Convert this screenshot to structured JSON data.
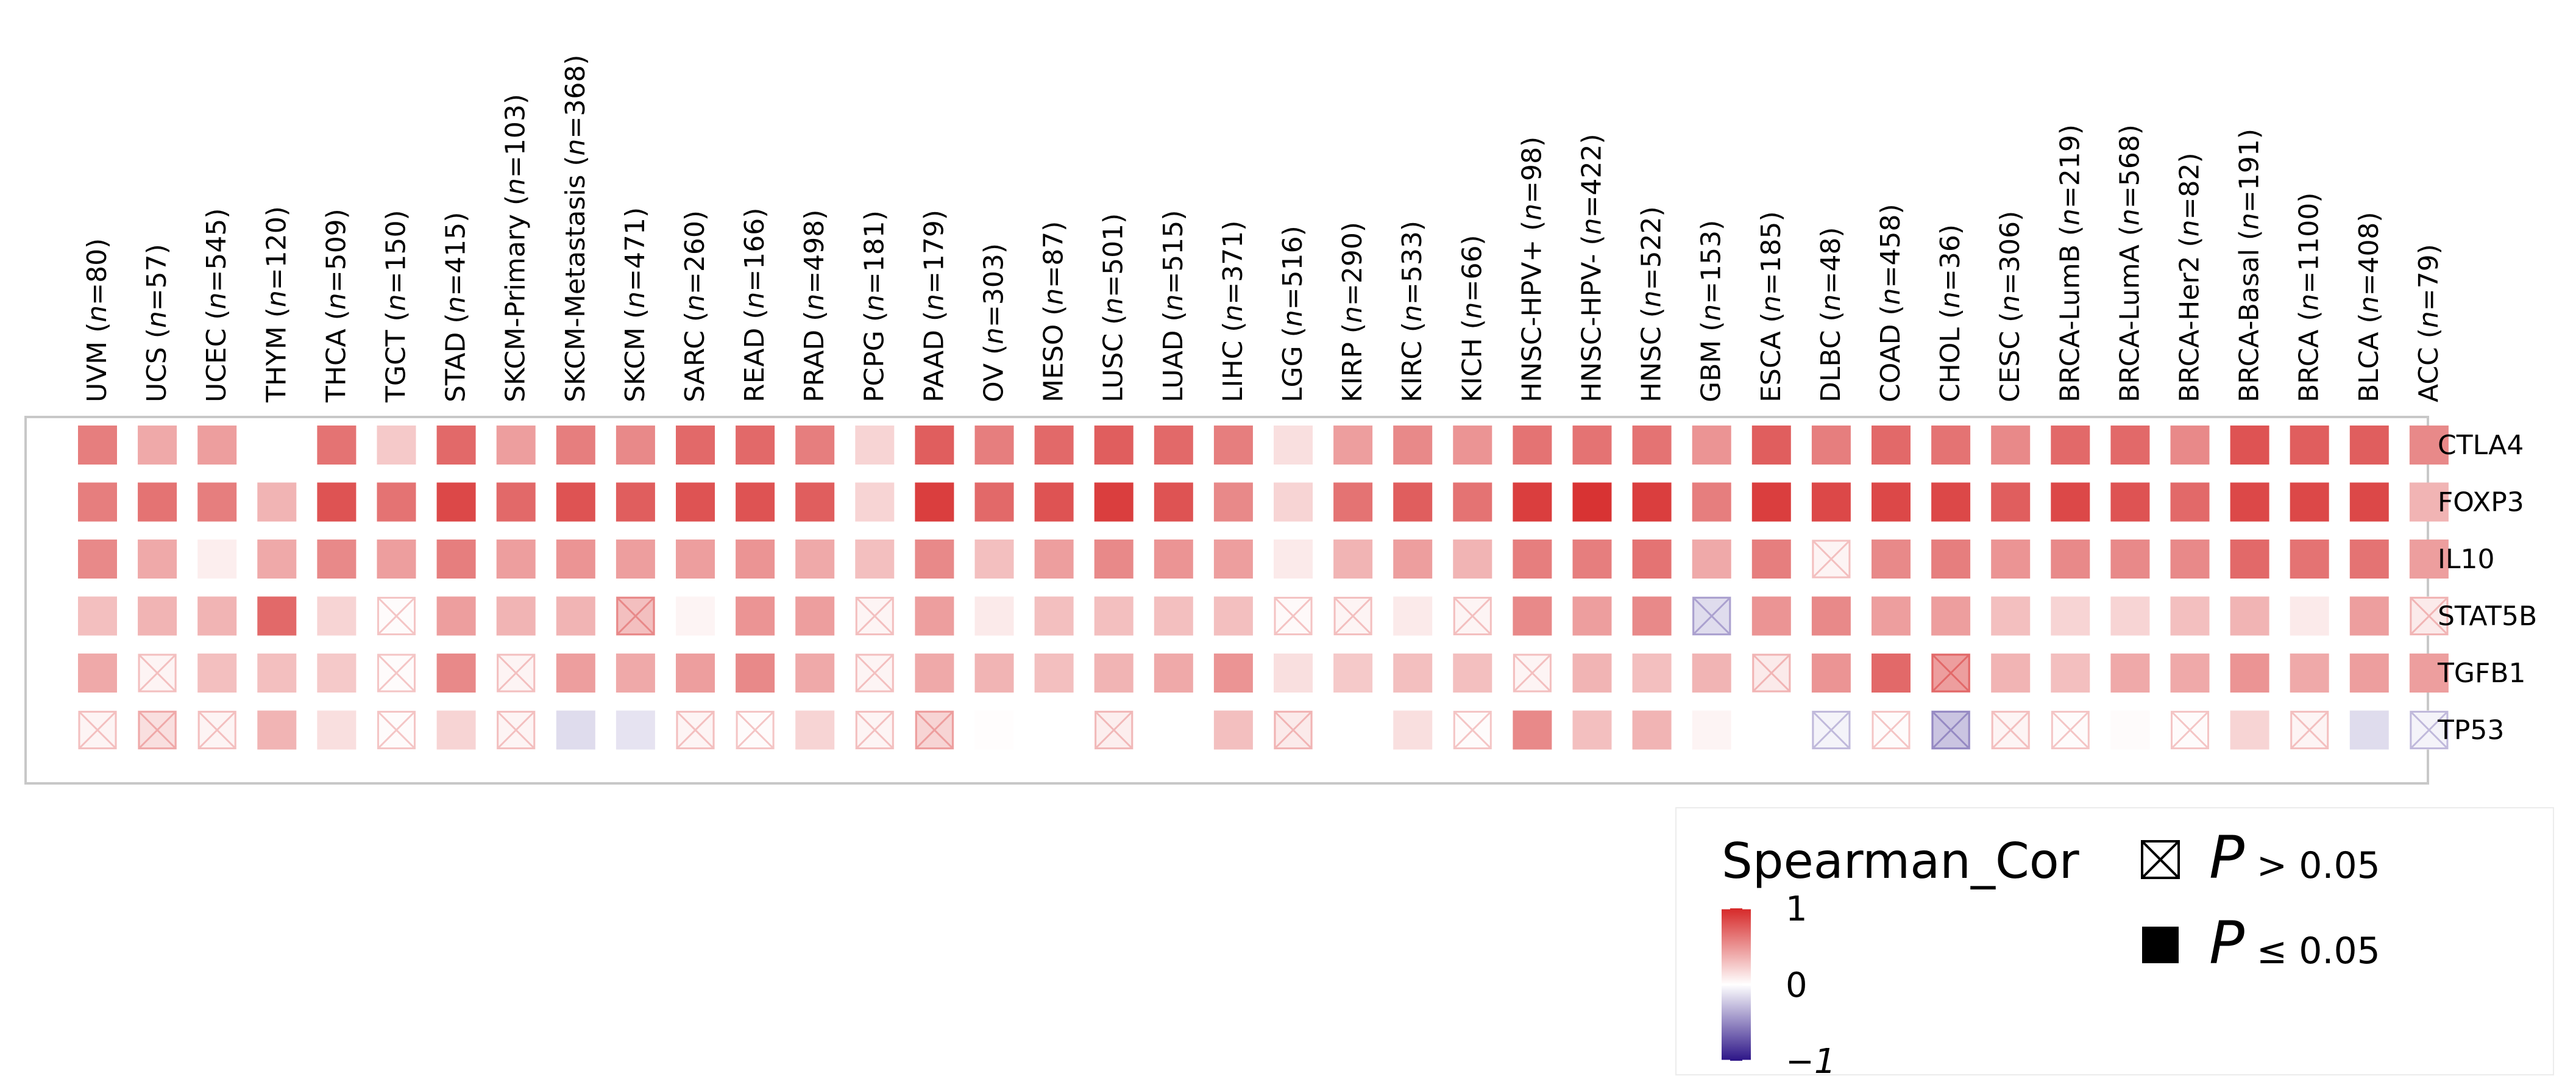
{
  "chart_data": {
    "type": "heatmap",
    "title": "",
    "cancers": [
      {
        "name": "UVM",
        "n": "80"
      },
      {
        "name": "UCS",
        "n": "57"
      },
      {
        "name": "UCEC",
        "n": "545"
      },
      {
        "name": "THYM",
        "n": "120"
      },
      {
        "name": "THCA",
        "n": "509"
      },
      {
        "name": "TGCT",
        "n": "150"
      },
      {
        "name": "STAD",
        "n": "415"
      },
      {
        "name": "SKCM-Primary",
        "n": "103"
      },
      {
        "name": "SKCM-Metastasis",
        "n": "368"
      },
      {
        "name": "SKCM",
        "n": "471"
      },
      {
        "name": "SARC",
        "n": "260"
      },
      {
        "name": "READ",
        "n": "166"
      },
      {
        "name": "PRAD",
        "n": "498"
      },
      {
        "name": "PCPG",
        "n": "181"
      },
      {
        "name": "PAAD",
        "n": "179"
      },
      {
        "name": "OV",
        "n": "303"
      },
      {
        "name": "MESO",
        "n": "87"
      },
      {
        "name": "LUSC",
        "n": "501"
      },
      {
        "name": "LUAD",
        "n": "515"
      },
      {
        "name": "LIHC",
        "n": "371"
      },
      {
        "name": "LGG",
        "n": "516"
      },
      {
        "name": "KIRP",
        "n": "290"
      },
      {
        "name": "KIRC",
        "n": "533"
      },
      {
        "name": "KICH",
        "n": "66"
      },
      {
        "name": "HNSC-HPV+",
        "n": "98"
      },
      {
        "name": "HNSC-HPV-",
        "n": "422"
      },
      {
        "name": "HNSC",
        "n": "522"
      },
      {
        "name": "GBM",
        "n": "153"
      },
      {
        "name": "ESCA",
        "n": "185"
      },
      {
        "name": "DLBC",
        "n": "48"
      },
      {
        "name": "COAD",
        "n": "458"
      },
      {
        "name": "CHOL",
        "n": "36"
      },
      {
        "name": "CESC",
        "n": "306"
      },
      {
        "name": "BRCA-LumB",
        "n": "219"
      },
      {
        "name": "BRCA-LumA",
        "n": "568"
      },
      {
        "name": "BRCA-Her2",
        "n": "82"
      },
      {
        "name": "BRCA-Basal",
        "n": "191"
      },
      {
        "name": "BRCA",
        "n": "1100"
      },
      {
        "name": "BLCA",
        "n": "408"
      },
      {
        "name": "ACC",
        "n": "79"
      }
    ],
    "genes": [
      "CTLA4",
      "FOXP3",
      "IL10",
      "STAT5B",
      "TGFB1",
      "TP53"
    ],
    "values": [
      [
        0.6,
        0.4,
        0.45,
        0.0,
        0.65,
        0.25,
        0.7,
        0.45,
        0.6,
        0.55,
        0.7,
        0.7,
        0.6,
        0.2,
        0.75,
        0.6,
        0.7,
        0.75,
        0.7,
        0.6,
        0.15,
        0.45,
        0.55,
        0.5,
        0.65,
        0.65,
        0.65,
        0.5,
        0.75,
        0.6,
        0.7,
        0.65,
        0.55,
        0.7,
        0.7,
        0.55,
        0.8,
        0.75,
        0.75,
        0.55
      ],
      [
        0.6,
        0.65,
        0.6,
        0.35,
        0.8,
        0.65,
        0.85,
        0.7,
        0.8,
        0.75,
        0.8,
        0.8,
        0.75,
        0.2,
        0.9,
        0.7,
        0.8,
        0.9,
        0.8,
        0.55,
        0.2,
        0.65,
        0.75,
        0.65,
        0.9,
        0.95,
        0.9,
        0.6,
        0.9,
        0.85,
        0.85,
        0.85,
        0.75,
        0.85,
        0.8,
        0.7,
        0.85,
        0.85,
        0.85,
        0.35
      ],
      [
        0.55,
        0.4,
        0.08,
        0.4,
        0.55,
        0.45,
        0.6,
        0.45,
        0.5,
        0.45,
        0.45,
        0.5,
        0.4,
        0.3,
        0.55,
        0.3,
        0.45,
        0.55,
        0.5,
        0.45,
        0.1,
        0.35,
        0.45,
        0.35,
        0.6,
        0.6,
        0.65,
        0.4,
        0.6,
        0.05,
        0.55,
        0.6,
        0.5,
        0.55,
        0.55,
        0.55,
        0.7,
        0.65,
        0.65,
        0.45
      ],
      [
        0.3,
        0.35,
        0.35,
        0.7,
        0.2,
        0.02,
        0.45,
        0.35,
        0.35,
        0.3,
        0.05,
        0.5,
        0.45,
        0.05,
        0.45,
        0.1,
        0.3,
        0.3,
        0.3,
        0.3,
        0.03,
        0.05,
        0.1,
        0.05,
        0.55,
        0.45,
        0.55,
        -0.15,
        0.5,
        0.55,
        0.45,
        0.45,
        0.3,
        0.2,
        0.2,
        0.3,
        0.35,
        0.1,
        0.45,
        0.1
      ],
      [
        0.4,
        0.05,
        0.3,
        0.3,
        0.25,
        0.02,
        0.55,
        0.05,
        0.45,
        0.4,
        0.45,
        0.55,
        0.4,
        0.05,
        0.4,
        0.35,
        0.3,
        0.35,
        0.4,
        0.5,
        0.15,
        0.25,
        0.3,
        0.3,
        0.05,
        0.35,
        0.3,
        0.35,
        0.1,
        0.5,
        0.7,
        0.45,
        0.35,
        0.3,
        0.4,
        0.4,
        0.5,
        0.4,
        0.45,
        0.45
      ],
      [
        0.05,
        0.15,
        0.05,
        0.35,
        0.15,
        0.02,
        0.2,
        0.05,
        -0.15,
        -0.12,
        0.05,
        0.02,
        0.2,
        0.05,
        0.2,
        0.01,
        0.0,
        0.08,
        0.0,
        0.3,
        0.1,
        0.0,
        0.15,
        0.02,
        0.55,
        0.3,
        0.35,
        0.05,
        0.0,
        -0.05,
        0.02,
        -0.25,
        0.05,
        0.02,
        0.02,
        0.02,
        0.2,
        0.05,
        -0.15,
        -0.05
      ]
    ],
    "not_significant": [
      [],
      [],
      [
        29
      ],
      [
        5,
        9,
        13,
        20,
        21,
        23,
        27,
        39
      ],
      [
        1,
        5,
        7,
        13,
        24,
        28,
        31
      ],
      [
        0,
        1,
        2,
        5,
        7,
        10,
        11,
        13,
        14,
        17,
        20,
        23,
        29,
        30,
        31,
        32,
        33,
        35,
        37,
        39
      ]
    ],
    "legend": {
      "title": "Spearman_Cor",
      "ticks": [
        {
          "value": 1,
          "label": "1"
        },
        {
          "value": 0,
          "label": "0"
        },
        {
          "value": -1,
          "label": "−1"
        }
      ],
      "range": [
        -1,
        1
      ],
      "colors": {
        "low": "#2c1487",
        "mid": "#ffffff",
        "high": "#d62828"
      },
      "sig_items": [
        {
          "symbol": "box-cross",
          "p": "P",
          "text": "> 0.05"
        },
        {
          "symbol": "filled-square",
          "p": "P",
          "text": "≤ 0.05"
        }
      ]
    },
    "colors": {
      "panel_border": "#c8c8c8",
      "legend_border": "#ececec"
    }
  }
}
